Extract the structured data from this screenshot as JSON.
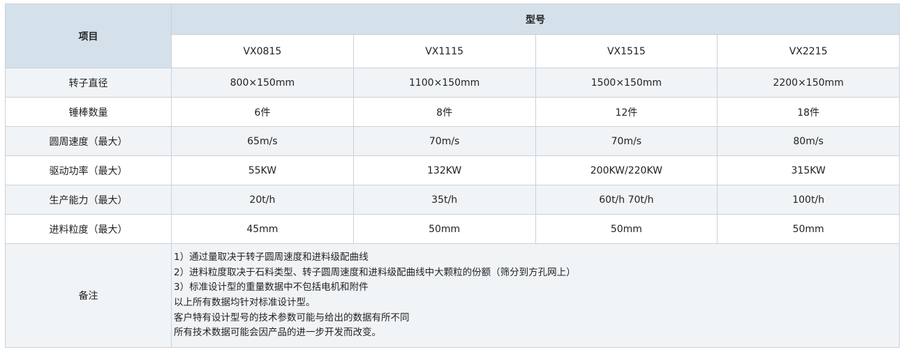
{
  "header": {
    "item_label": "项目",
    "model_label": "型号",
    "models": [
      "VX0815",
      "VX1115",
      "VX1515",
      "VX2215"
    ]
  },
  "rows": [
    {
      "label": "转子直径",
      "values": [
        "800×150mm",
        "1100×150mm",
        "1500×150mm",
        "2200×150mm"
      ]
    },
    {
      "label": "锤棒数量",
      "values": [
        "6件",
        "8件",
        "12件",
        "18件"
      ]
    },
    {
      "label": "圆周速度（最大）",
      "values": [
        "65m/s",
        "70m/s",
        "70m/s",
        "80m/s"
      ]
    },
    {
      "label": "驱动功率（最大）",
      "values": [
        "55KW",
        "132KW",
        "200KW/220KW",
        "315KW"
      ]
    },
    {
      "label": "生产能力（最大）",
      "values": [
        "20t/h",
        "35t/h",
        "60t/h 70t/h",
        "100t/h"
      ]
    },
    {
      "label": "进料粒度（最大）",
      "values": [
        "45mm",
        "50mm",
        "50mm",
        "50mm"
      ]
    }
  ],
  "notes": {
    "label": "备注",
    "lines": [
      "1）通过量取决于转子圆周速度和进料级配曲线",
      "2）进料粒度取决于石料类型、转子圆周速度和进料级配曲线中大颗粒的份额（筛分到方孔网上）",
      "3）标准设计型的重量数据中不包括电机和附件",
      "以上所有数据均针对标准设计型。",
      "客户特有设计型号的技术参数可能与给出的数据有所不同",
      "所有技术数据可能会因产品的进一步开发而改变。"
    ]
  },
  "colors": {
    "header_bg": "#d4e0ea",
    "stripe_bg": "#f0f4f7",
    "border": "#c9d1d9"
  }
}
